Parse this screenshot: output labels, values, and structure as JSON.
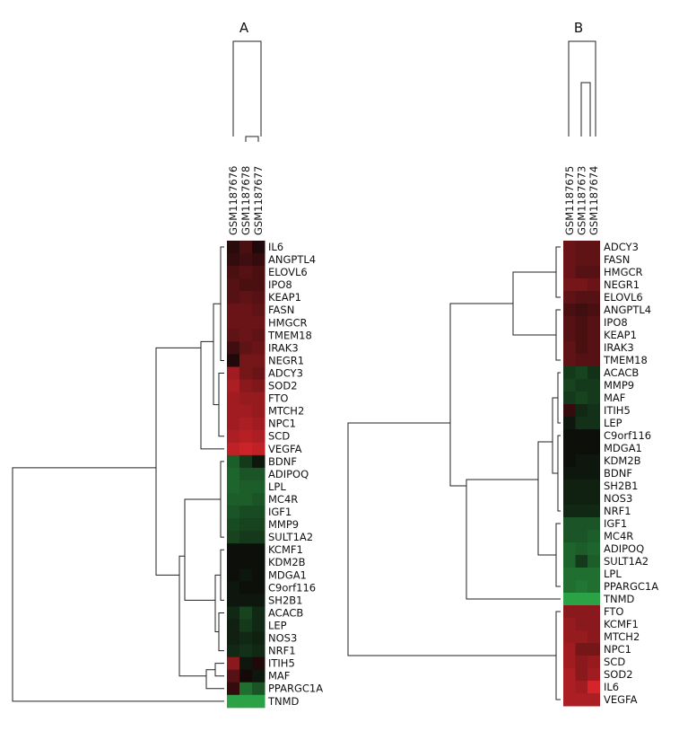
{
  "colors": {
    "strong_red": "#e0262c",
    "red": "#b51d24",
    "dark_red": "#6a0f15",
    "black": "#0a0606",
    "dark_green": "#14381e",
    "green": "#1e7a3a",
    "bright_green": "#2fb34c",
    "line": "#222222"
  },
  "chart_data": [
    {
      "type": "heatmap",
      "title": "A",
      "samples": [
        "GSM1187676",
        "GSM1187678",
        "GSM1187677"
      ],
      "genes": [
        "IL6",
        "ANGPTL4",
        "ELOVL6",
        "IPO8",
        "KEAP1",
        "FASN",
        "HMGCR",
        "TMEM18",
        "IRAK3",
        "NEGR1",
        "ADCY3",
        "SOD2",
        "FTO",
        "MTCH2",
        "NPC1",
        "SCD",
        "VEGFA",
        "BDNF",
        "ADIPOQ",
        "LPL",
        "MC4R",
        "IGF1",
        "MMP9",
        "SULT1A2",
        "KCMF1",
        "KDM2B",
        "MDGA1",
        "C9orf116",
        "SH2B1",
        "ACACB",
        "LEP",
        "NOS3",
        "NRF1",
        "ITIH5",
        "MAF",
        "PPARGC1A",
        "TNMD"
      ],
      "values": [
        [
          0.15,
          0.3,
          0.1
        ],
        [
          0.2,
          0.25,
          0.2
        ],
        [
          0.3,
          0.35,
          0.3
        ],
        [
          0.35,
          0.3,
          0.3
        ],
        [
          0.35,
          0.4,
          0.35
        ],
        [
          0.45,
          0.45,
          0.4
        ],
        [
          0.45,
          0.45,
          0.45
        ],
        [
          0.4,
          0.45,
          0.4
        ],
        [
          0.25,
          0.4,
          0.45
        ],
        [
          0.1,
          0.5,
          0.5
        ],
        [
          0.7,
          0.5,
          0.45
        ],
        [
          0.75,
          0.6,
          0.55
        ],
        [
          0.7,
          0.65,
          0.65
        ],
        [
          0.7,
          0.7,
          0.65
        ],
        [
          0.7,
          0.75,
          0.7
        ],
        [
          0.75,
          0.8,
          0.75
        ],
        [
          0.85,
          0.9,
          0.85
        ],
        [
          -0.5,
          -0.3,
          -0.1
        ],
        [
          -0.55,
          -0.45,
          -0.45
        ],
        [
          -0.55,
          -0.5,
          -0.5
        ],
        [
          -0.5,
          -0.5,
          -0.45
        ],
        [
          -0.45,
          -0.4,
          -0.4
        ],
        [
          -0.4,
          -0.35,
          -0.35
        ],
        [
          -0.35,
          -0.3,
          -0.3
        ],
        [
          -0.05,
          -0.05,
          -0.05
        ],
        [
          -0.05,
          -0.05,
          -0.05
        ],
        [
          -0.05,
          -0.1,
          -0.05
        ],
        [
          -0.1,
          -0.05,
          -0.05
        ],
        [
          -0.1,
          -0.1,
          -0.1
        ],
        [
          -0.2,
          -0.35,
          -0.2
        ],
        [
          -0.15,
          -0.3,
          -0.2
        ],
        [
          -0.15,
          -0.2,
          -0.15
        ],
        [
          -0.2,
          -0.25,
          -0.2
        ],
        [
          0.6,
          -0.1,
          0.1
        ],
        [
          0.35,
          0.05,
          -0.1
        ],
        [
          0.2,
          -0.6,
          -0.45
        ],
        [
          -0.9,
          -0.9,
          -0.9
        ]
      ]
    },
    {
      "type": "heatmap",
      "title": "B",
      "samples": [
        "GSM1187675",
        "GSM1187673",
        "GSM1187674"
      ],
      "genes": [
        "ADCY3",
        "FASN",
        "HMGCR",
        "NEGR1",
        "ELOVL6",
        "ANGPTL4",
        "IPO8",
        "KEAP1",
        "IRAK3",
        "TMEM18",
        "ACACB",
        "MMP9",
        "MAF",
        "ITIH5",
        "LEP",
        "C9orf116",
        "MDGA1",
        "KDM2B",
        "BDNF",
        "SH2B1",
        "NOS3",
        "NRF1",
        "IGF1",
        "MC4R",
        "ADIPOQ",
        "SULT1A2",
        "LPL",
        "PPARGC1A",
        "TNMD",
        "FTO",
        "KCMF1",
        "MTCH2",
        "NPC1",
        "SCD",
        "SOD2",
        "IL6",
        "VEGFA"
      ],
      "values": [
        [
          0.45,
          0.4,
          0.4
        ],
        [
          0.45,
          0.4,
          0.4
        ],
        [
          0.45,
          0.35,
          0.35
        ],
        [
          0.5,
          0.5,
          0.45
        ],
        [
          0.4,
          0.35,
          0.35
        ],
        [
          0.3,
          0.25,
          0.3
        ],
        [
          0.35,
          0.3,
          0.35
        ],
        [
          0.35,
          0.3,
          0.35
        ],
        [
          0.4,
          0.3,
          0.35
        ],
        [
          0.4,
          0.35,
          0.35
        ],
        [
          -0.3,
          -0.35,
          -0.25
        ],
        [
          -0.35,
          -0.3,
          -0.3
        ],
        [
          -0.3,
          -0.35,
          -0.3
        ],
        [
          0.2,
          -0.2,
          -0.25
        ],
        [
          -0.1,
          -0.25,
          -0.25
        ],
        [
          -0.05,
          -0.05,
          -0.05
        ],
        [
          -0.05,
          -0.05,
          -0.05
        ],
        [
          -0.05,
          -0.1,
          -0.1
        ],
        [
          -0.1,
          -0.1,
          -0.1
        ],
        [
          -0.15,
          -0.15,
          -0.15
        ],
        [
          -0.15,
          -0.15,
          -0.15
        ],
        [
          -0.2,
          -0.2,
          -0.2
        ],
        [
          -0.45,
          -0.45,
          -0.45
        ],
        [
          -0.45,
          -0.45,
          -0.5
        ],
        [
          -0.55,
          -0.5,
          -0.55
        ],
        [
          -0.55,
          -0.3,
          -0.5
        ],
        [
          -0.6,
          -0.6,
          -0.6
        ],
        [
          -0.6,
          -0.65,
          -0.6
        ],
        [
          -0.9,
          -0.9,
          -0.9
        ],
        [
          0.6,
          0.6,
          0.6
        ],
        [
          0.65,
          0.6,
          0.6
        ],
        [
          0.65,
          0.65,
          0.6
        ],
        [
          0.7,
          0.5,
          0.5
        ],
        [
          0.7,
          0.6,
          0.65
        ],
        [
          0.75,
          0.6,
          0.7
        ],
        [
          0.75,
          0.7,
          0.95
        ],
        [
          0.75,
          0.75,
          0.75
        ]
      ]
    }
  ]
}
